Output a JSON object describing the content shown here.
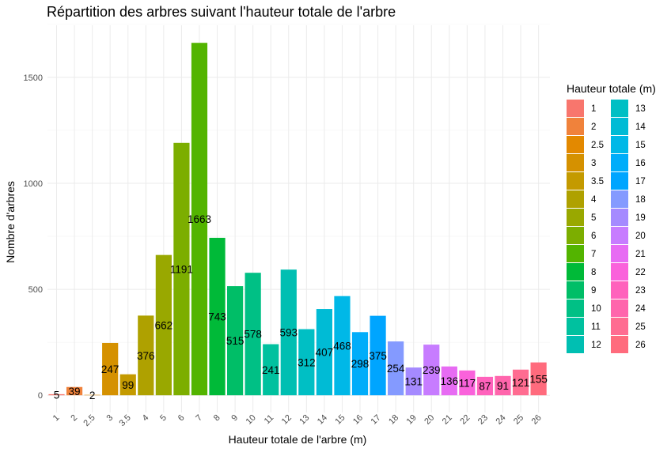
{
  "chart_data": {
    "type": "bar",
    "title": "Répartition des arbres suivant l'hauteur totale de l'arbre",
    "xlabel": "Hauteur totale de l'arbre (m)",
    "ylabel": "Nombre d'arbres",
    "ylim": [
      0,
      1700
    ],
    "yticks": [
      0,
      500,
      1000,
      1500
    ],
    "categories": [
      "1",
      "2",
      "2.5",
      "3",
      "3.5",
      "4",
      "5",
      "6",
      "7",
      "8",
      "9",
      "10",
      "11",
      "12",
      "13",
      "14",
      "15",
      "16",
      "17",
      "18",
      "19",
      "20",
      "21",
      "22",
      "23",
      "24",
      "25",
      "26"
    ],
    "values": [
      5,
      39,
      2,
      247,
      99,
      376,
      662,
      1191,
      1663,
      743,
      515,
      578,
      241,
      593,
      312,
      407,
      468,
      298,
      375,
      254,
      131,
      239,
      136,
      117,
      87,
      91,
      121,
      155
    ],
    "data_labels": [
      "5",
      "39",
      "2",
      "247",
      "99",
      "376",
      "662",
      "1191",
      "1663",
      "743",
      "515",
      "578",
      "241",
      "593",
      "312",
      "407",
      "468",
      "298",
      "375",
      "254",
      "131",
      "239",
      "136",
      "117",
      "87",
      "91",
      "121",
      "155"
    ],
    "colors": [
      "#F8766D",
      "#F0823B",
      "#E38900",
      "#D59100",
      "#C49A00",
      "#AFA100",
      "#99A800",
      "#7CAE00",
      "#53B400",
      "#00BA38",
      "#00BE67",
      "#00C085",
      "#00C19F",
      "#00BFB2",
      "#00BFC4",
      "#00BBD5",
      "#00B8E7",
      "#00ADFA",
      "#00A5FF",
      "#849AFF",
      "#A58AFF",
      "#C77CFF",
      "#E76BF3",
      "#FA62DB",
      "#FF62BC",
      "#FF65AC",
      "#FF6C91",
      "#FF6B7D"
    ],
    "legend": {
      "title": "Hauteur totale (m)",
      "position": "right",
      "columns": 2
    },
    "grid": true
  }
}
